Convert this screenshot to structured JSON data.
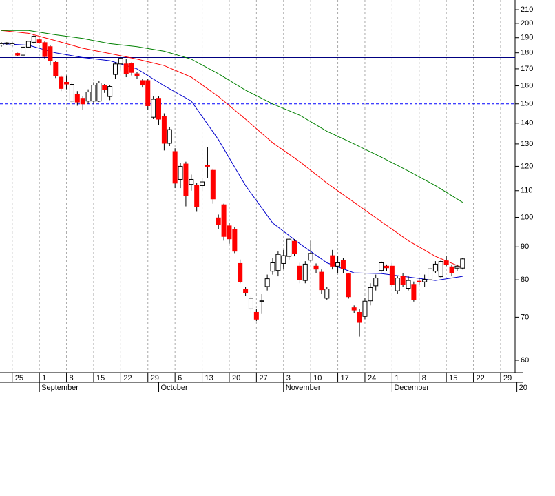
{
  "chart_data": {
    "type": "candlestick",
    "categories": [
      null,
      null,
      "25",
      null,
      null,
      null,
      null,
      "1",
      null,
      null,
      null,
      null,
      "8",
      null,
      null,
      null,
      null,
      "15",
      null,
      null,
      null,
      null,
      "22",
      null,
      null,
      null,
      null,
      "29",
      null,
      null,
      null,
      null,
      "6",
      null,
      null,
      null,
      null,
      "13",
      null,
      null,
      null,
      null,
      "20",
      null,
      null,
      null,
      null,
      "27",
      null,
      null,
      null,
      null,
      "3",
      null,
      null,
      null,
      null,
      "10",
      null,
      null,
      null,
      null,
      "17",
      null,
      null,
      null,
      null,
      "24",
      null,
      null,
      null,
      null,
      "1",
      null,
      null,
      null,
      null,
      "8",
      null,
      null,
      null,
      null,
      "15",
      null,
      null,
      null,
      null,
      "22",
      null,
      null,
      null,
      null,
      "29",
      null,
      null
    ],
    "month_labels": [
      {
        "label": "September",
        "index": 7
      },
      {
        "label": "October",
        "index": 29
      },
      {
        "label": "November",
        "index": 52
      },
      {
        "label": "December",
        "index": 72
      },
      {
        "label": "20",
        "index": 95
      }
    ],
    "open": [
      185,
      186,
      185,
      179.6,
      178.5,
      183.7,
      186.9,
      188.6,
      186.7,
      184,
      174,
      165,
      162,
      151.5,
      155,
      153,
      151.5,
      151.5,
      151.5,
      160.4,
      154,
      166.6,
      173,
      173,
      173.5,
      167,
      163,
      163,
      143,
      153,
      143.5,
      130.3,
      126.5,
      114.5,
      121,
      112.5,
      112,
      112,
      120.5,
      118.3,
      99.8,
      104.6,
      97,
      95.9,
      84.8,
      77.4,
      72.1,
      71.2,
      74,
      78.1,
      82.5,
      82.7,
      84.8,
      87,
      91.8,
      84,
      79.8,
      85.8,
      84,
      82.2,
      74.9,
      87.2,
      84,
      85.8,
      81.7,
      72.4,
      71.2,
      70.2,
      74.2,
      78.3,
      82.7,
      84,
      84,
      76.9,
      81,
      77.6,
      78.7,
      79.6,
      79.4,
      80,
      82.5,
      80.9,
      85.6,
      83.8,
      83.4,
      83.4,
      null,
      null,
      null,
      null,
      null,
      null,
      null,
      null,
      null
    ],
    "high": [
      187,
      187,
      187,
      180,
      184.5,
      188,
      192,
      189,
      187.5,
      185,
      175,
      166,
      166,
      162,
      157,
      154,
      158,
      162,
      163,
      161,
      160.5,
      174,
      178,
      176,
      174,
      168,
      164,
      164,
      154,
      154,
      145,
      138,
      128,
      121.5,
      122,
      116.5,
      113,
      115,
      128.5,
      119,
      101,
      105,
      98,
      96.5,
      86,
      78,
      75.5,
      72,
      76,
      81.5,
      86.5,
      88.5,
      89,
      93,
      92.5,
      85,
      85.5,
      92,
      84.8,
      83,
      78,
      89,
      87,
      86.5,
      82,
      73,
      72,
      75,
      79,
      81.5,
      85.5,
      84.5,
      85,
      81,
      82,
      81,
      79.5,
      80.5,
      81.5,
      84,
      85.5,
      86,
      87.2,
      84.5,
      84.5,
      86.5,
      null,
      null,
      null,
      null,
      null,
      null,
      null,
      null,
      null
    ],
    "low": [
      184,
      185,
      184,
      178,
      177,
      183,
      186,
      186,
      176,
      172,
      164.5,
      157,
      158,
      150,
      149,
      147,
      150,
      150,
      151,
      156,
      152,
      164,
      169,
      165,
      166,
      164,
      159,
      147,
      142,
      139,
      127,
      129,
      111,
      111,
      104,
      110,
      102,
      110,
      115,
      105,
      96,
      92,
      91,
      88,
      79,
      75.5,
      71,
      69,
      70.8,
      77,
      81.5,
      81,
      83,
      86,
      87,
      79,
      79,
      85,
      82,
      76,
      74.5,
      83,
      82,
      82,
      74.8,
      71,
      65.3,
      69.5,
      73,
      77,
      82,
      82.5,
      78,
      76,
      78,
      77,
      74,
      78.5,
      78,
      79.5,
      82,
      80.5,
      84,
      81,
      82.5,
      83,
      null,
      null,
      null,
      null,
      null,
      null,
      null,
      null,
      null
    ],
    "close": [
      186,
      186.5,
      186,
      178.5,
      183.7,
      187.6,
      191,
      186.7,
      177.6,
      175,
      166,
      158.5,
      161,
      160.8,
      151,
      150,
      156.5,
      160.4,
      161.6,
      157.7,
      159.6,
      173,
      176.5,
      167,
      167.8,
      166,
      160.4,
      149,
      152.5,
      142,
      130.3,
      136.8,
      113,
      120,
      108,
      114.5,
      104,
      113.5,
      120,
      106.8,
      97.4,
      93.4,
      92.6,
      88.6,
      79.5,
      76.3,
      74.9,
      69.5,
      74.2,
      80.3,
      85,
      87.6,
      87.2,
      92.5,
      87.9,
      80,
      84.6,
      87.9,
      83.1,
      77.2,
      77.4,
      84,
      85,
      83.3,
      75.3,
      71.8,
      68.7,
      74.1,
      77.8,
      80.5,
      85,
      83.5,
      78.7,
      80.5,
      78.7,
      79.8,
      74.6,
      79.4,
      80.1,
      83.2,
      84.6,
      85.4,
      84.4,
      82.1,
      84,
      86.2,
      null,
      null,
      null,
      null,
      null,
      null,
      null,
      null,
      null
    ],
    "up_color": "#ffffff",
    "down_color": "#ff0000",
    "series": [
      {
        "color": "#0000cc",
        "x": [
          0,
          5,
          10,
          15,
          20,
          25,
          30,
          35,
          40,
          45,
          50,
          55,
          60,
          65,
          70,
          75,
          80,
          85
        ],
        "values": [
          186,
          185,
          180,
          177,
          175,
          170,
          160,
          151.5,
          132,
          112,
          98,
          91,
          85,
          82,
          81.8,
          80.8,
          79.8,
          81
        ]
      },
      {
        "color": "#ff0000",
        "x": [
          0,
          5,
          10,
          15,
          20,
          25,
          30,
          35,
          40,
          45,
          50,
          55,
          60,
          65,
          70,
          75,
          80,
          85
        ],
        "values": [
          195,
          193,
          188,
          183,
          179.5,
          176,
          172,
          165,
          154,
          142,
          130.5,
          122,
          113,
          105.5,
          98.5,
          92,
          87,
          83.5
        ]
      },
      {
        "color": "#008000",
        "x": [
          0,
          5,
          10,
          15,
          20,
          25,
          30,
          35,
          40,
          45,
          50,
          55,
          60,
          65,
          70,
          75,
          80,
          85
        ],
        "values": [
          195,
          195,
          192,
          189.5,
          186,
          184,
          181,
          176,
          167,
          157.5,
          150,
          144,
          136,
          130,
          124,
          118,
          112,
          105.5
        ]
      }
    ],
    "hlines": [
      {
        "value": 177,
        "color": "#000080",
        "style": "solid"
      },
      {
        "value": 150,
        "color": "#0000ff",
        "style": "dashed"
      }
    ],
    "log_scale": true,
    "ylim": [
      57.4,
      217.4
    ],
    "yticks": [
      60,
      70,
      80,
      90,
      100,
      110,
      120,
      130,
      140,
      150,
      160,
      170,
      180,
      190,
      200,
      210
    ],
    "grid": true
  }
}
